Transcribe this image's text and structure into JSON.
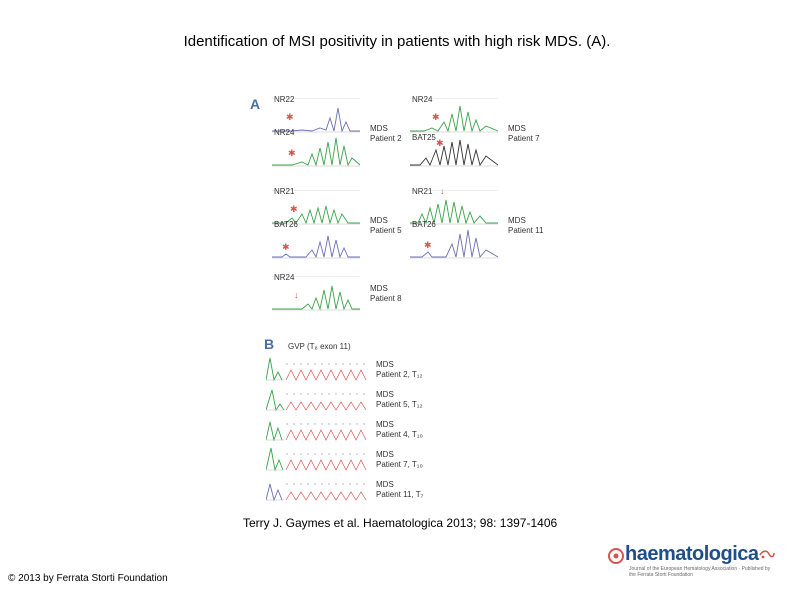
{
  "title": "Identification of MSI positivity in patients with high risk MDS. (A).",
  "citation": "Terry J. Gaymes et al. Haematologica 2013; 98: 1397-1406",
  "copyright": "© 2013 by Ferrata Storti Foundation",
  "figure": {
    "panel_a": {
      "letter": "A",
      "blocks": [
        {
          "markers": [
            "NR22",
            "NR24"
          ],
          "group": "MDS",
          "patient": "Patient 2"
        },
        {
          "markers": [
            "NR24",
            "BAT25"
          ],
          "group": "MDS",
          "patient": "Patient 7"
        },
        {
          "markers": [
            "NR21",
            "BAT26"
          ],
          "group": "MDS",
          "patient": "Patient 5"
        },
        {
          "markers": [
            "NR21",
            "BAT26"
          ],
          "group": "MDS",
          "patient": "Patient 11"
        },
        {
          "markers": [
            "NR24"
          ],
          "group": "MDS",
          "patient": "Patient 8"
        }
      ]
    },
    "panel_b": {
      "letter": "B",
      "heading": "GVP (T₈ exon 11)",
      "rows": [
        {
          "group": "MDS",
          "patient": "Patient 2, T₁₂"
        },
        {
          "group": "MDS",
          "patient": "Patient 5, T₁₂"
        },
        {
          "group": "MDS",
          "patient": "Patient 4, T₁₀"
        },
        {
          "group": "MDS",
          "patient": "Patient 7, T₁₀"
        },
        {
          "group": "MDS",
          "patient": "Patient 11, T₇"
        }
      ]
    }
  },
  "logo": {
    "word": "haematologica",
    "subtitle": "Journal of the European Hematology Association · Published by the Ferrata Storti Foundation"
  },
  "colors": {
    "green": "#3aa34a",
    "purple": "#6b6fb5",
    "red": "#d9534f",
    "blue": "#1f4f8a"
  }
}
